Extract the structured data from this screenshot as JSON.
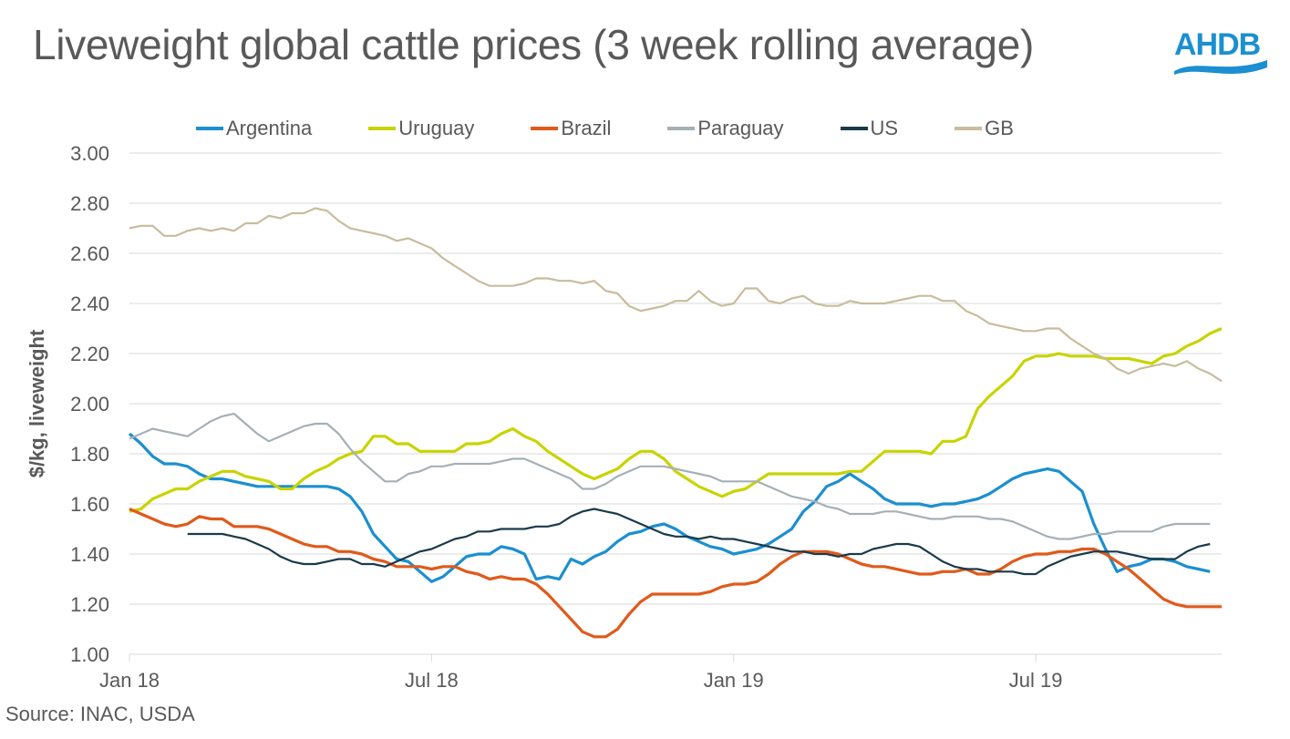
{
  "title": "Liveweight global cattle prices (3 week rolling average)",
  "logo": "AHDB",
  "source": "Source: INAC, USDA",
  "chart_data": {
    "type": "line",
    "title": "Liveweight global cattle prices (3 week rolling average)",
    "xlabel": "",
    "ylabel": "$/kg, liveweight",
    "ylim": [
      1.0,
      3.0
    ],
    "yticks": [
      "1.00",
      "1.20",
      "1.40",
      "1.60",
      "1.80",
      "2.00",
      "2.20",
      "2.40",
      "2.60",
      "2.80",
      "3.00"
    ],
    "xticks": [
      {
        "label": "Jan 18",
        "index": 0
      },
      {
        "label": "Jul 18",
        "index": 26
      },
      {
        "label": "Jan 19",
        "index": 52
      },
      {
        "label": "Jul 19",
        "index": 78
      }
    ],
    "x_unit": "week index from Jan 2018",
    "grid": true,
    "legend_position": "top",
    "series": [
      {
        "name": "Argentina",
        "color": "#1b8fd1",
        "start_index": 0,
        "values": [
          1.88,
          1.84,
          1.79,
          1.76,
          1.76,
          1.75,
          1.72,
          1.7,
          1.7,
          1.69,
          1.68,
          1.67,
          1.67,
          1.67,
          1.67,
          1.67,
          1.67,
          1.67,
          1.66,
          1.63,
          1.57,
          1.48,
          1.43,
          1.38,
          1.37,
          1.33,
          1.29,
          1.31,
          1.35,
          1.39,
          1.4,
          1.4,
          1.43,
          1.42,
          1.4,
          1.3,
          1.31,
          1.3,
          1.38,
          1.36,
          1.39,
          1.41,
          1.45,
          1.48,
          1.49,
          1.51,
          1.52,
          1.5,
          1.47,
          1.45,
          1.43,
          1.42,
          1.4,
          1.41,
          1.42,
          1.44,
          1.47,
          1.5,
          1.57,
          1.61,
          1.67,
          1.69,
          1.72,
          1.69,
          1.66,
          1.62,
          1.6,
          1.6,
          1.6,
          1.59,
          1.6,
          1.6,
          1.61,
          1.62,
          1.64,
          1.67,
          1.7,
          1.72,
          1.73,
          1.74,
          1.73,
          1.69,
          1.65,
          1.52,
          1.42,
          1.33,
          1.35,
          1.36,
          1.38,
          1.38,
          1.37,
          1.35,
          1.34,
          1.33
        ]
      },
      {
        "name": "Uruguay",
        "color": "#c8d400",
        "start_index": 0,
        "values": [
          1.57,
          1.58,
          1.62,
          1.64,
          1.66,
          1.66,
          1.69,
          1.71,
          1.73,
          1.73,
          1.71,
          1.7,
          1.69,
          1.66,
          1.66,
          1.7,
          1.73,
          1.75,
          1.78,
          1.8,
          1.81,
          1.87,
          1.87,
          1.84,
          1.84,
          1.81,
          1.81,
          1.81,
          1.81,
          1.84,
          1.84,
          1.85,
          1.88,
          1.9,
          1.87,
          1.85,
          1.81,
          1.78,
          1.75,
          1.72,
          1.7,
          1.72,
          1.74,
          1.78,
          1.81,
          1.81,
          1.78,
          1.73,
          1.7,
          1.67,
          1.65,
          1.63,
          1.65,
          1.66,
          1.69,
          1.72,
          1.72,
          1.72,
          1.72,
          1.72,
          1.72,
          1.72,
          1.73,
          1.73,
          1.77,
          1.81,
          1.81,
          1.81,
          1.81,
          1.8,
          1.85,
          1.85,
          1.87,
          1.98,
          2.03,
          2.07,
          2.11,
          2.17,
          2.19,
          2.19,
          2.2,
          2.19,
          2.19,
          2.19,
          2.18,
          2.18,
          2.18,
          2.17,
          2.16,
          2.19,
          2.2,
          2.23,
          2.25,
          2.28,
          2.3
        ]
      },
      {
        "name": "Brazil",
        "color": "#e05a1a",
        "start_index": 0,
        "values": [
          1.58,
          1.56,
          1.54,
          1.52,
          1.51,
          1.52,
          1.55,
          1.54,
          1.54,
          1.51,
          1.51,
          1.51,
          1.5,
          1.48,
          1.46,
          1.44,
          1.43,
          1.43,
          1.41,
          1.41,
          1.4,
          1.38,
          1.37,
          1.35,
          1.35,
          1.35,
          1.34,
          1.35,
          1.35,
          1.33,
          1.32,
          1.3,
          1.31,
          1.3,
          1.3,
          1.28,
          1.24,
          1.19,
          1.14,
          1.09,
          1.07,
          1.07,
          1.1,
          1.16,
          1.21,
          1.24,
          1.24,
          1.24,
          1.24,
          1.24,
          1.25,
          1.27,
          1.28,
          1.28,
          1.29,
          1.32,
          1.36,
          1.39,
          1.41,
          1.41,
          1.41,
          1.4,
          1.38,
          1.36,
          1.35,
          1.35,
          1.34,
          1.33,
          1.32,
          1.32,
          1.33,
          1.33,
          1.34,
          1.32,
          1.32,
          1.34,
          1.37,
          1.39,
          1.4,
          1.4,
          1.41,
          1.41,
          1.42,
          1.42,
          1.4,
          1.37,
          1.34,
          1.3,
          1.26,
          1.22,
          1.2,
          1.19,
          1.19,
          1.19,
          1.19
        ]
      },
      {
        "name": "Paraguay",
        "color": "#a5b0b6",
        "start_index": 0,
        "values": [
          1.86,
          1.88,
          1.9,
          1.89,
          1.88,
          1.87,
          1.9,
          1.93,
          1.95,
          1.96,
          1.92,
          1.88,
          1.85,
          1.87,
          1.89,
          1.91,
          1.92,
          1.92,
          1.88,
          1.82,
          1.77,
          1.73,
          1.69,
          1.69,
          1.72,
          1.73,
          1.75,
          1.75,
          1.76,
          1.76,
          1.76,
          1.76,
          1.77,
          1.78,
          1.78,
          1.76,
          1.74,
          1.72,
          1.7,
          1.66,
          1.66,
          1.68,
          1.71,
          1.73,
          1.75,
          1.75,
          1.75,
          1.74,
          1.73,
          1.72,
          1.71,
          1.69,
          1.69,
          1.69,
          1.69,
          1.67,
          1.65,
          1.63,
          1.62,
          1.61,
          1.59,
          1.58,
          1.56,
          1.56,
          1.56,
          1.57,
          1.57,
          1.56,
          1.55,
          1.54,
          1.54,
          1.55,
          1.55,
          1.55,
          1.54,
          1.54,
          1.53,
          1.51,
          1.49,
          1.47,
          1.46,
          1.46,
          1.47,
          1.48,
          1.48,
          1.49,
          1.49,
          1.49,
          1.49,
          1.51,
          1.52,
          1.52,
          1.52,
          1.52
        ]
      },
      {
        "name": "US",
        "color": "#1a3a4a",
        "start_index": 5,
        "values": [
          1.48,
          1.48,
          1.48,
          1.48,
          1.47,
          1.46,
          1.44,
          1.42,
          1.39,
          1.37,
          1.36,
          1.36,
          1.37,
          1.38,
          1.38,
          1.36,
          1.36,
          1.35,
          1.37,
          1.39,
          1.41,
          1.42,
          1.44,
          1.46,
          1.47,
          1.49,
          1.49,
          1.5,
          1.5,
          1.5,
          1.51,
          1.51,
          1.52,
          1.55,
          1.57,
          1.58,
          1.57,
          1.56,
          1.54,
          1.52,
          1.5,
          1.48,
          1.47,
          1.47,
          1.46,
          1.47,
          1.46,
          1.46,
          1.45,
          1.44,
          1.43,
          1.42,
          1.41,
          1.41,
          1.4,
          1.4,
          1.39,
          1.4,
          1.4,
          1.42,
          1.43,
          1.44,
          1.44,
          1.43,
          1.4,
          1.37,
          1.35,
          1.34,
          1.34,
          1.33,
          1.33,
          1.33,
          1.32,
          1.32,
          1.35,
          1.37,
          1.39,
          1.4,
          1.41,
          1.41,
          1.41,
          1.4,
          1.39,
          1.38,
          1.38,
          1.38,
          1.41,
          1.43,
          1.44
        ]
      },
      {
        "name": "GB",
        "color": "#c8bc9c",
        "start_index": 0,
        "values": [
          2.7,
          2.71,
          2.71,
          2.67,
          2.67,
          2.69,
          2.7,
          2.69,
          2.7,
          2.69,
          2.72,
          2.72,
          2.75,
          2.74,
          2.76,
          2.76,
          2.78,
          2.77,
          2.73,
          2.7,
          2.69,
          2.68,
          2.67,
          2.65,
          2.66,
          2.64,
          2.62,
          2.58,
          2.55,
          2.52,
          2.49,
          2.47,
          2.47,
          2.47,
          2.48,
          2.5,
          2.5,
          2.49,
          2.49,
          2.48,
          2.49,
          2.45,
          2.44,
          2.39,
          2.37,
          2.38,
          2.39,
          2.41,
          2.41,
          2.45,
          2.41,
          2.39,
          2.4,
          2.46,
          2.46,
          2.41,
          2.4,
          2.42,
          2.43,
          2.4,
          2.39,
          2.39,
          2.41,
          2.4,
          2.4,
          2.4,
          2.41,
          2.42,
          2.43,
          2.43,
          2.41,
          2.41,
          2.37,
          2.35,
          2.32,
          2.31,
          2.3,
          2.29,
          2.29,
          2.3,
          2.3,
          2.26,
          2.23,
          2.2,
          2.18,
          2.14,
          2.12,
          2.14,
          2.15,
          2.16,
          2.15,
          2.17,
          2.14,
          2.12,
          2.09
        ]
      }
    ]
  }
}
